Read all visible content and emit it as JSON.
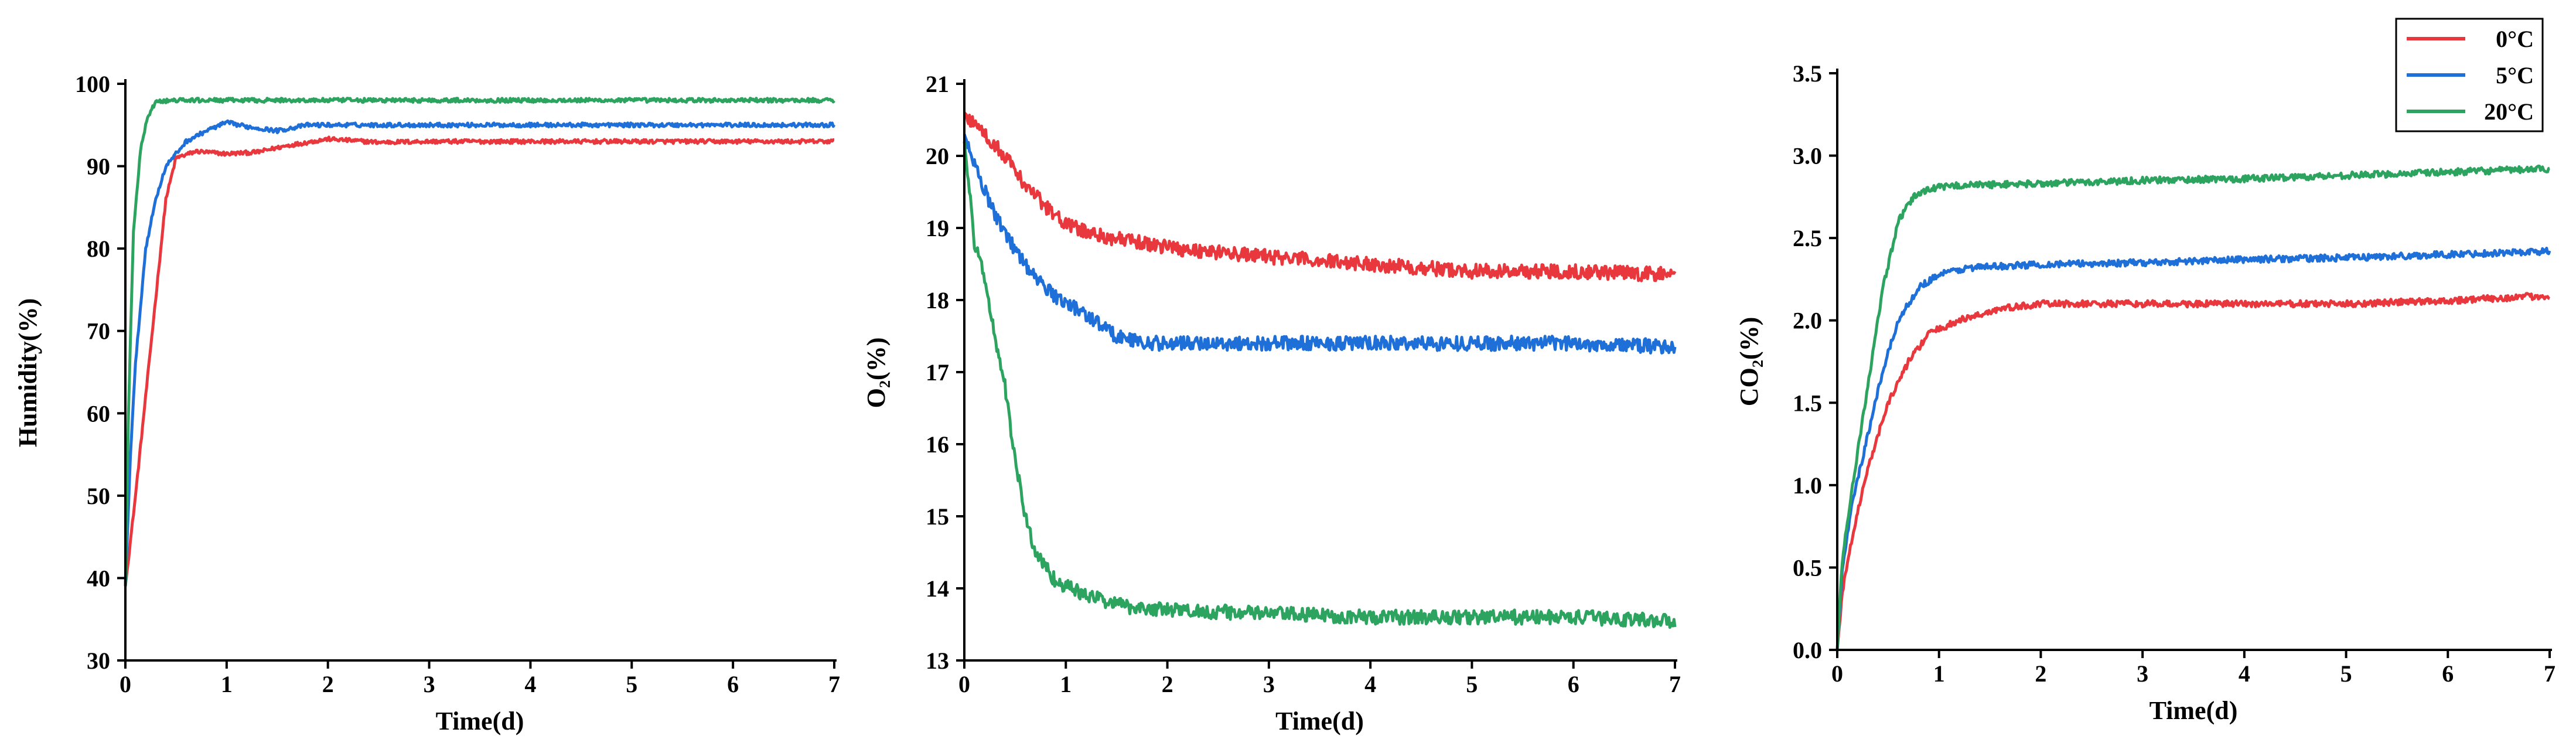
{
  "chart_data": [
    {
      "type": "line",
      "title": "",
      "xlabel": "Time(d)",
      "ylabel": "Humidity(%)",
      "xlim": [
        0,
        7
      ],
      "ylim": [
        30,
        100
      ],
      "xticks": [
        0,
        1,
        2,
        3,
        4,
        5,
        6,
        7
      ],
      "yticks": [
        30,
        40,
        50,
        60,
        70,
        80,
        90,
        100
      ],
      "grid": false,
      "series": [
        {
          "name": "0°C",
          "color": "#e8383d",
          "noise": 0.25,
          "points": [
            [
              0,
              39
            ],
            [
              0.1,
              50
            ],
            [
              0.2,
              62
            ],
            [
              0.3,
              74
            ],
            [
              0.4,
              86
            ],
            [
              0.5,
              91
            ],
            [
              0.7,
              91.8
            ],
            [
              1.0,
              91.5
            ],
            [
              1.3,
              91.7
            ],
            [
              1.6,
              92.5
            ],
            [
              2.0,
              93.3
            ],
            [
              2.5,
              92.9
            ],
            [
              3,
              93
            ],
            [
              4,
              93
            ],
            [
              5,
              93
            ],
            [
              6,
              93
            ],
            [
              7,
              93
            ]
          ]
        },
        {
          "name": "5°C",
          "color": "#1f6fd8",
          "noise": 0.25,
          "points": [
            [
              0,
              39
            ],
            [
              0.05,
              55
            ],
            [
              0.1,
              66
            ],
            [
              0.2,
              80
            ],
            [
              0.3,
              86
            ],
            [
              0.4,
              90
            ],
            [
              0.6,
              93
            ],
            [
              0.8,
              94.3
            ],
            [
              1.0,
              95.3
            ],
            [
              1.2,
              94.8
            ],
            [
              1.5,
              94.3
            ],
            [
              1.8,
              95
            ],
            [
              2.2,
              95
            ],
            [
              3,
              95
            ],
            [
              4,
              95
            ],
            [
              5,
              95
            ],
            [
              6,
              95
            ],
            [
              7,
              95
            ]
          ]
        },
        {
          "name": "20°C",
          "color": "#2da360",
          "noise": 0.25,
          "points": [
            [
              0,
              39
            ],
            [
              0.03,
              60
            ],
            [
              0.08,
              82
            ],
            [
              0.15,
              92
            ],
            [
              0.22,
              96
            ],
            [
              0.3,
              97.8
            ],
            [
              0.5,
              98
            ],
            [
              1,
              98
            ],
            [
              2,
              98
            ],
            [
              3,
              98
            ],
            [
              4,
              98
            ],
            [
              5,
              98
            ],
            [
              6,
              98
            ],
            [
              7,
              98
            ]
          ]
        }
      ]
    },
    {
      "type": "line",
      "title": "",
      "xlabel": "Time(d)",
      "ylabel": "O₂(%)",
      "xlim": [
        0,
        7
      ],
      "ylim": [
        13,
        21
      ],
      "xticks": [
        0,
        1,
        2,
        3,
        4,
        5,
        6,
        7
      ],
      "yticks": [
        13,
        14,
        15,
        16,
        17,
        18,
        19,
        20,
        21
      ],
      "grid": false,
      "series": [
        {
          "name": "0°C",
          "color": "#e8383d",
          "noise": 0.1,
          "points": [
            [
              0,
              20.6
            ],
            [
              0.2,
              20.3
            ],
            [
              0.4,
              20
            ],
            [
              0.6,
              19.6
            ],
            [
              0.8,
              19.3
            ],
            [
              1.0,
              19.05
            ],
            [
              1.3,
              18.9
            ],
            [
              1.7,
              18.8
            ],
            [
              2.2,
              18.7
            ],
            [
              3,
              18.6
            ],
            [
              4,
              18.5
            ],
            [
              5,
              18.4
            ],
            [
              6,
              18.4
            ],
            [
              7,
              18.35
            ]
          ]
        },
        {
          "name": "5°C",
          "color": "#1f6fd8",
          "noise": 0.1,
          "points": [
            [
              0,
              20.3
            ],
            [
              0.15,
              19.7
            ],
            [
              0.3,
              19.2
            ],
            [
              0.5,
              18.7
            ],
            [
              0.7,
              18.3
            ],
            [
              0.9,
              18.05
            ],
            [
              1.2,
              17.8
            ],
            [
              1.5,
              17.5
            ],
            [
              1.8,
              17.4
            ],
            [
              2.5,
              17.4
            ],
            [
              3,
              17.4
            ],
            [
              4,
              17.4
            ],
            [
              5,
              17.4
            ],
            [
              6,
              17.4
            ],
            [
              7,
              17.35
            ]
          ]
        },
        {
          "name": "20°C",
          "color": "#2da360",
          "noise": 0.1,
          "points": [
            [
              0,
              20.2
            ],
            [
              0.1,
              18.8
            ],
            [
              0.2,
              18.3
            ],
            [
              0.3,
              17.5
            ],
            [
              0.4,
              16.8
            ],
            [
              0.5,
              15.8
            ],
            [
              0.6,
              15
            ],
            [
              0.7,
              14.5
            ],
            [
              0.9,
              14.1
            ],
            [
              1.2,
              13.9
            ],
            [
              1.6,
              13.75
            ],
            [
              2,
              13.7
            ],
            [
              3,
              13.65
            ],
            [
              4,
              13.6
            ],
            [
              5,
              13.6
            ],
            [
              6,
              13.6
            ],
            [
              7,
              13.55
            ]
          ]
        }
      ]
    },
    {
      "type": "line",
      "title": "",
      "xlabel": "Time(d)",
      "ylabel": "CO₂(%)",
      "xlim": [
        0,
        7
      ],
      "ylim": [
        0,
        3.5
      ],
      "xticks": [
        0,
        1,
        2,
        3,
        4,
        5,
        6,
        7
      ],
      "yticks": [
        0.0,
        0.5,
        1.0,
        1.5,
        2.0,
        2.5,
        3.0,
        3.5
      ],
      "grid": false,
      "legend_position": "top-right",
      "series": [
        {
          "name": "0°C",
          "color": "#e8383d",
          "noise": 0.02,
          "points": [
            [
              0,
              0
            ],
            [
              0.05,
              0.35
            ],
            [
              0.15,
              0.7
            ],
            [
              0.3,
              1.1
            ],
            [
              0.5,
              1.5
            ],
            [
              0.7,
              1.75
            ],
            [
              0.9,
              1.92
            ],
            [
              1.2,
              2.0
            ],
            [
              1.6,
              2.07
            ],
            [
              2,
              2.1
            ],
            [
              3,
              2.1
            ],
            [
              4,
              2.1
            ],
            [
              5,
              2.1
            ],
            [
              6,
              2.12
            ],
            [
              7,
              2.15
            ]
          ]
        },
        {
          "name": "5°C",
          "color": "#1f6fd8",
          "noise": 0.02,
          "points": [
            [
              0,
              0
            ],
            [
              0.05,
              0.5
            ],
            [
              0.15,
              0.9
            ],
            [
              0.3,
              1.3
            ],
            [
              0.45,
              1.7
            ],
            [
              0.6,
              2.0
            ],
            [
              0.8,
              2.2
            ],
            [
              1.0,
              2.28
            ],
            [
              1.3,
              2.32
            ],
            [
              2,
              2.34
            ],
            [
              3,
              2.35
            ],
            [
              4,
              2.37
            ],
            [
              5,
              2.38
            ],
            [
              6,
              2.4
            ],
            [
              7,
              2.42
            ]
          ]
        },
        {
          "name": "20°C",
          "color": "#2da360",
          "noise": 0.02,
          "points": [
            [
              0,
              0
            ],
            [
              0.05,
              0.55
            ],
            [
              0.15,
              1.0
            ],
            [
              0.3,
              1.6
            ],
            [
              0.45,
              2.2
            ],
            [
              0.6,
              2.6
            ],
            [
              0.75,
              2.75
            ],
            [
              0.9,
              2.8
            ],
            [
              1.2,
              2.82
            ],
            [
              2,
              2.83
            ],
            [
              3,
              2.85
            ],
            [
              4,
              2.86
            ],
            [
              5,
              2.88
            ],
            [
              6,
              2.9
            ],
            [
              7,
              2.92
            ]
          ]
        }
      ]
    }
  ],
  "legend": {
    "items": [
      {
        "label": "0°C",
        "color": "#e8383d"
      },
      {
        "label": "5°C",
        "color": "#1f6fd8"
      },
      {
        "label": "20°C",
        "color": "#2da360"
      }
    ]
  }
}
